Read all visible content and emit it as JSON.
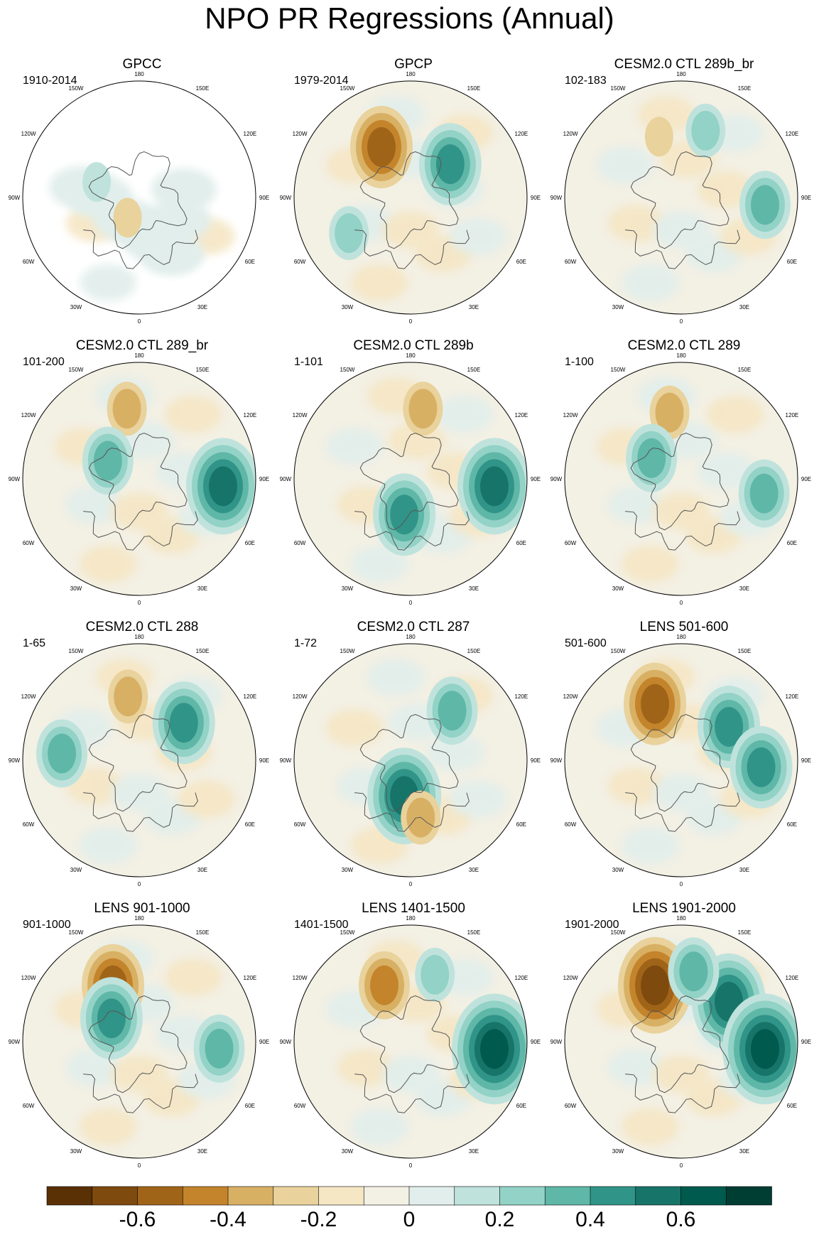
{
  "title": "NPO PR Regressions (Annual)",
  "longitude_labels": {
    "top": "180",
    "bottom": "0",
    "left": "90W",
    "right": "90E",
    "upper_left_1": "150W",
    "upper_left_2": "120W",
    "upper_right_1": "150E",
    "upper_right_2": "120E",
    "lower_left_1": "60W",
    "lower_left_2": "30W",
    "lower_right_1": "60E",
    "lower_right_2": "30E"
  },
  "panels": [
    {
      "title": "GPCC",
      "period": "1910-2014",
      "mask_land_only": true,
      "anomalies": [
        {
          "type": "neg",
          "lon": -30,
          "lat": 72,
          "level": 1
        },
        {
          "type": "pos",
          "lon": -110,
          "lat": 55,
          "level": 1
        }
      ]
    },
    {
      "title": "GPCP",
      "period": "1979-2014",
      "anomalies": [
        {
          "type": "neg",
          "lon": -150,
          "lat": 45,
          "level": 4
        },
        {
          "type": "pos",
          "lon": 130,
          "lat": 50,
          "level": 4
        },
        {
          "type": "pos",
          "lon": -60,
          "lat": 35,
          "level": 2
        }
      ]
    },
    {
      "title": "CESM2.0 CTL 289b_br",
      "period": "102-183",
      "anomalies": [
        {
          "type": "pos",
          "lon": 160,
          "lat": 35,
          "level": 2
        },
        {
          "type": "pos",
          "lon": 85,
          "lat": 25,
          "level": 3
        },
        {
          "type": "neg",
          "lon": -160,
          "lat": 40,
          "level": 1
        }
      ]
    },
    {
      "title": "CESM2.0 CTL 289_br",
      "period": "101-200",
      "anomalies": [
        {
          "type": "neg",
          "lon": -170,
          "lat": 35,
          "level": 2
        },
        {
          "type": "pos",
          "lon": 85,
          "lat": 25,
          "level": 5
        },
        {
          "type": "pos",
          "lon": -120,
          "lat": 62,
          "level": 3
        }
      ]
    },
    {
      "title": "CESM2.0 CTL 289b",
      "period": "1-101",
      "anomalies": [
        {
          "type": "neg",
          "lon": 170,
          "lat": 35,
          "level": 2
        },
        {
          "type": "pos",
          "lon": 85,
          "lat": 25,
          "level": 5
        },
        {
          "type": "pos",
          "lon": -10,
          "lat": 62,
          "level": 4
        }
      ]
    },
    {
      "title": "CESM2.0 CTL 289",
      "period": "1-100",
      "anomalies": [
        {
          "type": "neg",
          "lon": -170,
          "lat": 38,
          "level": 2
        },
        {
          "type": "pos",
          "lon": 80,
          "lat": 25,
          "level": 3
        },
        {
          "type": "pos",
          "lon": -125,
          "lat": 62,
          "level": 3
        }
      ]
    },
    {
      "title": "CESM2.0 CTL 288",
      "period": "1-65",
      "anomalies": [
        {
          "type": "neg",
          "lon": -170,
          "lat": 40,
          "level": 2
        },
        {
          "type": "pos",
          "lon": 130,
          "lat": 45,
          "level": 4
        },
        {
          "type": "pos",
          "lon": -95,
          "lat": 30,
          "level": 3
        }
      ]
    },
    {
      "title": "CESM2.0 CTL 287",
      "period": "1-72",
      "anomalies": [
        {
          "type": "pos",
          "lon": 140,
          "lat": 40,
          "level": 3
        },
        {
          "type": "pos",
          "lon": -10,
          "lat": 62,
          "level": 5
        },
        {
          "type": "neg",
          "lon": 10,
          "lat": 45,
          "level": 2
        }
      ]
    },
    {
      "title": "LENS 501-600",
      "period": "501-600",
      "anomalies": [
        {
          "type": "neg",
          "lon": -155,
          "lat": 42,
          "level": 4
        },
        {
          "type": "pos",
          "lon": 125,
          "lat": 45,
          "level": 4
        },
        {
          "type": "pos",
          "lon": 85,
          "lat": 28,
          "level": 4
        }
      ]
    },
    {
      "title": "LENS 901-1000",
      "period": "901-1000",
      "anomalies": [
        {
          "type": "neg",
          "lon": -155,
          "lat": 42,
          "level": 4
        },
        {
          "type": "pos",
          "lon": -130,
          "lat": 62,
          "level": 4
        },
        {
          "type": "pos",
          "lon": 85,
          "lat": 28,
          "level": 3
        }
      ]
    },
    {
      "title": "LENS 1401-1500",
      "period": "1401-1500",
      "anomalies": [
        {
          "type": "neg",
          "lon": -155,
          "lat": 42,
          "level": 3
        },
        {
          "type": "pos",
          "lon": 85,
          "lat": 25,
          "level": 6
        },
        {
          "type": "pos",
          "lon": 160,
          "lat": 35,
          "level": 2
        }
      ]
    },
    {
      "title": "LENS 1901-2000",
      "period": "1901-2000",
      "anomalies": [
        {
          "type": "neg",
          "lon": -155,
          "lat": 42,
          "level": 5
        },
        {
          "type": "pos",
          "lon": 130,
          "lat": 42,
          "level": 5
        },
        {
          "type": "pos",
          "lon": 85,
          "lat": 25,
          "level": 6
        },
        {
          "type": "pos",
          "lon": 170,
          "lat": 35,
          "level": 3
        }
      ]
    }
  ],
  "colorbar": {
    "colors": [
      "#5a3005",
      "#7e4a0e",
      "#a06419",
      "#c4842c",
      "#d8b064",
      "#e9d29c",
      "#f5e6c4",
      "#f3f0e4",
      "#e1eeeb",
      "#bfe3dc",
      "#93d2c6",
      "#5fb7a7",
      "#319488",
      "#177468",
      "#005a4e",
      "#003d32"
    ],
    "labels": [
      "-0.6",
      "-0.4",
      "-0.2",
      "0",
      "0.2",
      "0.4",
      "0.6"
    ],
    "label_values": [
      -0.6,
      -0.4,
      -0.2,
      0,
      0.2,
      0.4,
      0.6
    ],
    "vmin": -0.8,
    "vmax": 0.8
  }
}
